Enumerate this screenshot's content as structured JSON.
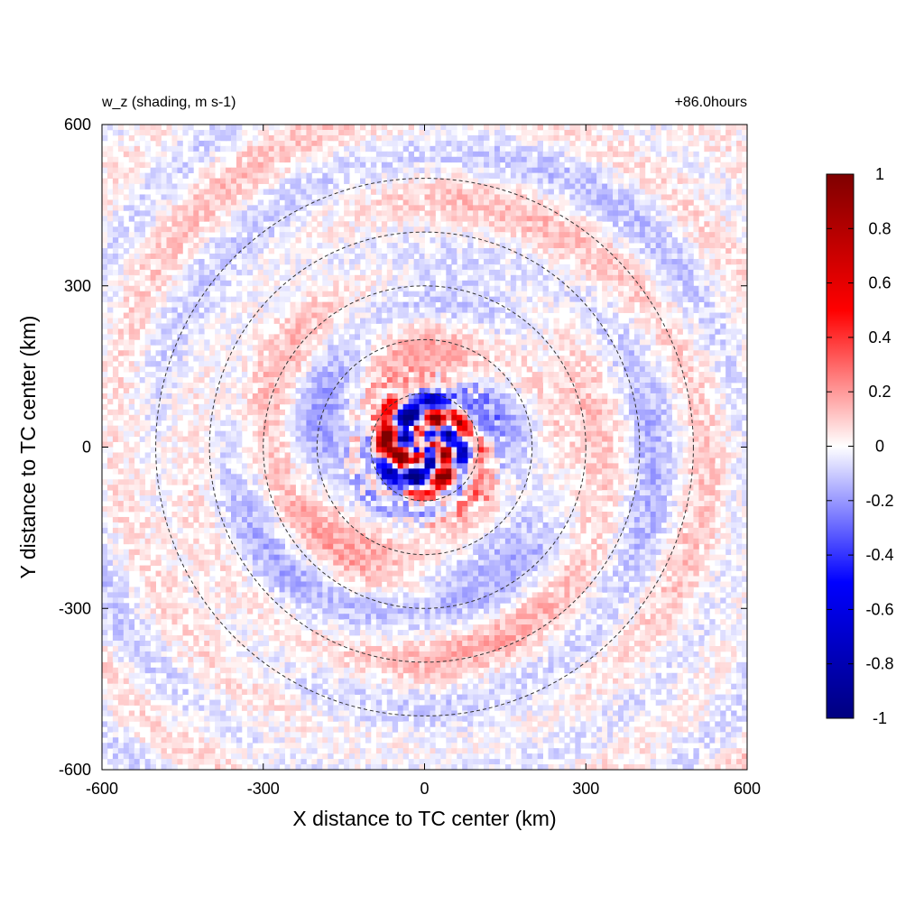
{
  "chart_data": {
    "type": "heatmap",
    "title_left": "w_z (shading, m s-1)",
    "title_right": "+86.0hours",
    "xlabel": "X distance to TC center (km)",
    "ylabel": "Y distance to TC center (km)",
    "xlim": [
      -600,
      600
    ],
    "ylim": [
      -600,
      600
    ],
    "xticks": [
      -600,
      -300,
      0,
      300,
      600
    ],
    "yticks": [
      -600,
      -300,
      0,
      300,
      600
    ],
    "xtick_labels": [
      "-600",
      "-300",
      "0",
      "300",
      "600"
    ],
    "ytick_labels": [
      "-600",
      "-300",
      "0",
      "300",
      "600"
    ],
    "circle_radii_km": [
      100,
      200,
      300,
      400,
      500
    ],
    "colorbar": {
      "min": -1,
      "max": 1,
      "ticks": [
        1,
        0.8,
        0.6,
        0.4,
        0.2,
        0,
        -0.2,
        -0.4,
        -0.6,
        -0.8,
        -1
      ],
      "tick_labels": [
        "1",
        "0.8",
        "0.6",
        "0.4",
        "0.2",
        "0",
        "-0.2",
        "-0.4",
        "-0.6",
        "-0.8",
        "-1"
      ],
      "colormap": [
        "#00007f",
        "#0000ff",
        "#ffffff",
        "#ff0000",
        "#7f0000"
      ]
    },
    "field_description": "vertical velocity field, spiral banded pattern around TC center, strongest values within 100 km"
  }
}
